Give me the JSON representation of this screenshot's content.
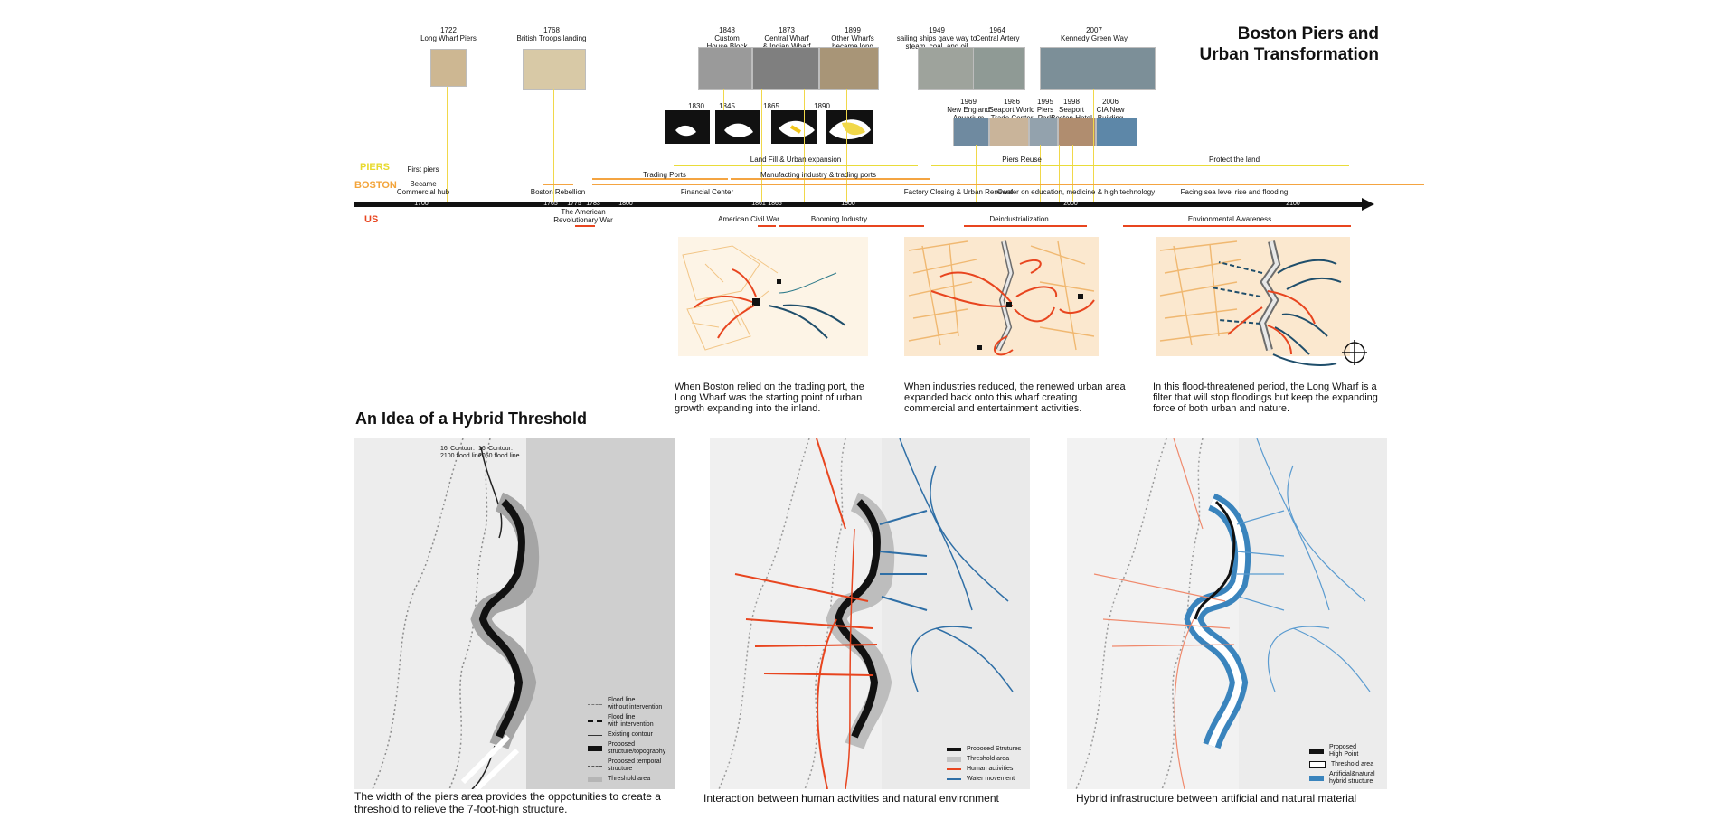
{
  "title_line1": "Boston Piers and",
  "title_line2": "Urban Transformation",
  "section_title": "An Idea of a Hybrid Threshold",
  "category_tags": {
    "piers": "PIERS",
    "boston": "BOSTON",
    "us": "US"
  },
  "top_events": [
    {
      "id": "e1722",
      "label": "1722\nLong Wharf Piers"
    },
    {
      "id": "e1768",
      "label": "1768\nBritish Troops landing"
    },
    {
      "id": "e1848",
      "label": "1848\nCustom\nHouse Block"
    },
    {
      "id": "e1873",
      "label": "1873\nCentral Wharf\n& Indian Wharf"
    },
    {
      "id": "e1899",
      "label": "1899\nOther Wharfs\nbecame long"
    },
    {
      "id": "e1949",
      "label": "1949\nsailing ships gave way to\nsteam, coal, and oil"
    },
    {
      "id": "e1964",
      "label": "1964\nCentral Artery"
    },
    {
      "id": "e2007",
      "label": "2007\nKennedy Green Way"
    }
  ],
  "mid_events": [
    {
      "id": "e1969",
      "label": "1969\nNew England\nAquarium"
    },
    {
      "id": "e1986",
      "label": "1986\nSeaport World\nTrade Center"
    },
    {
      "id": "e1995",
      "label": "1995\nPiers\nPark"
    },
    {
      "id": "e1998",
      "label": "1998\nSeaport\nBoston Hotel"
    },
    {
      "id": "e2006",
      "label": "2006\nCIA New\nBuilding"
    }
  ],
  "map_years": [
    "1830",
    "1845",
    "1865",
    "1890"
  ],
  "piers_bars": [
    {
      "id": "p1",
      "label": "First piers"
    },
    {
      "id": "p2",
      "label": "Land Fill & Urban expansion"
    },
    {
      "id": "p3",
      "label": "Piers Reuse"
    },
    {
      "id": "p4",
      "label": "Protect the land"
    }
  ],
  "boston_bars": [
    {
      "id": "b0",
      "label": "Became\nCommercial hub"
    },
    {
      "id": "b1",
      "label": "Boston Rebellion"
    },
    {
      "id": "b2",
      "label": "Trading Ports"
    },
    {
      "id": "b3",
      "label": "Financial Center"
    },
    {
      "id": "b4",
      "label": "Manufacting industry & trading ports"
    },
    {
      "id": "b5",
      "label": "Factory Closing & Urban Renewal"
    },
    {
      "id": "b6",
      "label": "Center on education, medicine & high technology"
    },
    {
      "id": "b7",
      "label": "Facing sea level rise and flooding"
    }
  ],
  "us_bars": [
    {
      "id": "u1",
      "label": "The American\nRevolutionary War"
    },
    {
      "id": "u2",
      "label": "American Civil War"
    },
    {
      "id": "u3",
      "label": "Booming Industry"
    },
    {
      "id": "u4",
      "label": "Deindustrialization"
    },
    {
      "id": "u5",
      "label": "Environmental Awareness"
    }
  ],
  "axis_ticks": [
    "1700",
    "1765",
    "1775",
    "1783",
    "1800",
    "1861",
    "1865",
    "1900",
    "2000",
    "2100"
  ],
  "phase_captions": [
    "When Boston relied on the trading port, the Long Wharf was the starting point of urban growth expanding into the inland.",
    "When industries reduced, the renewed urban area expanded back onto this wharf creating commercial and entertainment activities.",
    "In this flood-threatened period, the Long Wharf is a filter that will stop floodings but keep the expanding force of both urban and nature."
  ],
  "map_contours": {
    "c1": "16' Contour:\n2100 flood line",
    "c2": "16' Contour:\n2050 flood line"
  },
  "legend1": [
    "Flood line\nwithout intervention",
    "Flood line\nwith intervention",
    "Existing contour",
    "Proposed\nstructure/topography",
    "Proposed temporal\nstructure",
    "Threshold area"
  ],
  "legend2": [
    "Proposed Strutures",
    "Threshold area",
    "Human activities",
    "Water movement"
  ],
  "legend3": [
    "Proposed\nHigh Point",
    "Threshold area",
    "Artificial&natural\nhybrid structure"
  ],
  "map_captions": [
    "The width of the piers area provides the oppotunities to create a threshold to relieve the 7-foot-high structure.",
    "Interaction between human activities and natural environment",
    "Hybrid infrastructure between artificial and natural material"
  ],
  "colors": {
    "piers": "#e9dc3a",
    "boston": "#f4a441",
    "us": "#e8451f",
    "water": "#2f6fa6",
    "axis": "#111111"
  }
}
